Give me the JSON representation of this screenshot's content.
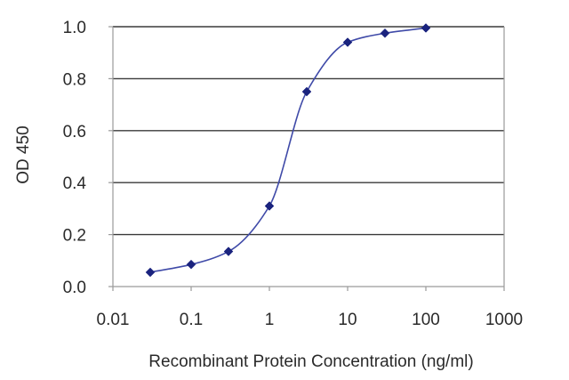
{
  "chart_data": {
    "type": "line",
    "title": "",
    "xlabel": "Recombinant Protein Concentration (ng/ml)",
    "ylabel": "OD 450",
    "x_scale": "log",
    "xlim": [
      0.01,
      1000
    ],
    "ylim": [
      0.0,
      1.0
    ],
    "x_tick_labels": [
      "0.01",
      "0.1",
      "1",
      "10",
      "100",
      "1000"
    ],
    "y_tick_labels": [
      "0.0",
      "0.2",
      "0.4",
      "0.6",
      "0.8",
      "1.0"
    ],
    "grid": "horizontal",
    "legend": "none",
    "series": [
      {
        "x": [
          0.03,
          0.1,
          0.3,
          1,
          3,
          10,
          30,
          100
        ],
        "y": [
          0.055,
          0.085,
          0.135,
          0.31,
          0.75,
          0.94,
          0.975,
          0.995
        ]
      }
    ],
    "colors": {
      "curve": "#3f4aa8",
      "marker": "#1a237e",
      "grid": "#3a3a3a",
      "axis": "#9a9a9a"
    }
  }
}
